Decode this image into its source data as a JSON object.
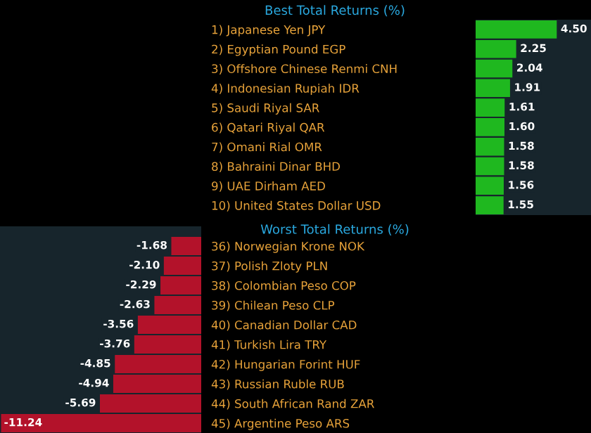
{
  "chart_data": [
    {
      "type": "bar",
      "orientation": "horizontal",
      "title": "Best Total Returns (%)",
      "categories": [
        "1) Japanese Yen JPY",
        "2) Egyptian Pound EGP",
        "3) Offshore Chinese Renmi CNH",
        "4) Indonesian Rupiah IDR",
        "5) Saudi Riyal SAR",
        "6) Qatari Riyal QAR",
        "7) Omani Rial OMR",
        "8) Bahraini Dinar BHD",
        "9) UAE Dirham AED",
        "10) United States Dollar USD"
      ],
      "values": [
        4.5,
        2.25,
        2.04,
        1.91,
        1.61,
        1.6,
        1.58,
        1.58,
        1.56,
        1.55
      ],
      "value_labels": [
        "4.50",
        "2.25",
        "2.04",
        "1.91",
        "1.61",
        "1.60",
        "1.58",
        "1.58",
        "1.56",
        "1.55"
      ],
      "color": "#1fb81f",
      "xlim": [
        0,
        6.4
      ],
      "tick_labels": "y"
    },
    {
      "type": "bar",
      "orientation": "horizontal",
      "title": "Worst Total Returns (%)",
      "categories": [
        "36) Norwegian Krone NOK",
        "37) Polish Zloty PLN",
        "38) Colombian Peso COP",
        "39) Chilean Peso CLP",
        "40) Canadian Dollar CAD",
        "41) Turkish Lira TRY",
        "42) Hungarian Forint HUF",
        "43) Russian Ruble RUB",
        "44) South African Rand ZAR",
        "45) Argentine Peso ARS"
      ],
      "values": [
        -1.68,
        -2.1,
        -2.29,
        -2.63,
        -3.56,
        -3.76,
        -4.85,
        -4.94,
        -5.69,
        -11.24
      ],
      "value_labels": [
        "-1.68",
        "-2.10",
        "-2.29",
        "-2.63",
        "-3.56",
        "-3.76",
        "-4.85",
        "-4.94",
        "-5.69",
        "-11.24"
      ],
      "color": "#b3122a",
      "xlim": [
        -11.3,
        0
      ],
      "tick_labels": "y"
    }
  ]
}
